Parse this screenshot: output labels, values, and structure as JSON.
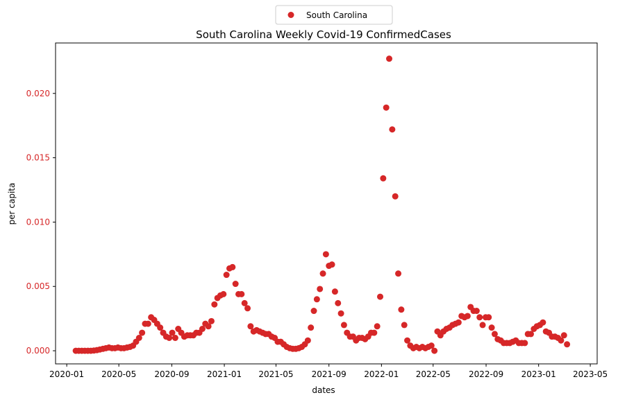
{
  "chart_data": {
    "type": "scatter",
    "title": "South Carolina Weekly Covid-19 ConfirmedCases",
    "xlabel": "dates",
    "ylabel": "per capita",
    "legend": "upper center",
    "series": [
      {
        "name": "South Carolina",
        "color": "#d62728",
        "x": [
          "2020-01-22",
          "2020-01-29",
          "2020-02-05",
          "2020-02-12",
          "2020-02-19",
          "2020-02-26",
          "2020-03-04",
          "2020-03-11",
          "2020-03-18",
          "2020-03-25",
          "2020-04-01",
          "2020-04-08",
          "2020-04-15",
          "2020-04-22",
          "2020-04-29",
          "2020-05-06",
          "2020-05-13",
          "2020-05-20",
          "2020-05-27",
          "2020-06-03",
          "2020-06-10",
          "2020-06-17",
          "2020-06-24",
          "2020-07-01",
          "2020-07-08",
          "2020-07-15",
          "2020-07-22",
          "2020-07-29",
          "2020-08-05",
          "2020-08-12",
          "2020-08-19",
          "2020-08-26",
          "2020-09-02",
          "2020-09-09",
          "2020-09-16",
          "2020-09-23",
          "2020-09-30",
          "2020-10-07",
          "2020-10-14",
          "2020-10-21",
          "2020-10-28",
          "2020-11-04",
          "2020-11-11",
          "2020-11-18",
          "2020-11-25",
          "2020-12-02",
          "2020-12-09",
          "2020-12-16",
          "2020-12-23",
          "2020-12-30",
          "2021-01-06",
          "2021-01-13",
          "2021-01-20",
          "2021-01-27",
          "2021-02-03",
          "2021-02-10",
          "2021-02-17",
          "2021-02-24",
          "2021-03-03",
          "2021-03-10",
          "2021-03-17",
          "2021-03-24",
          "2021-03-31",
          "2021-04-07",
          "2021-04-14",
          "2021-04-21",
          "2021-04-28",
          "2021-05-05",
          "2021-05-12",
          "2021-05-19",
          "2021-05-26",
          "2021-06-02",
          "2021-06-09",
          "2021-06-16",
          "2021-06-23",
          "2021-06-30",
          "2021-07-07",
          "2021-07-14",
          "2021-07-21",
          "2021-07-28",
          "2021-08-04",
          "2021-08-11",
          "2021-08-18",
          "2021-08-25",
          "2021-09-01",
          "2021-09-08",
          "2021-09-15",
          "2021-09-22",
          "2021-09-29",
          "2021-10-06",
          "2021-10-13",
          "2021-10-20",
          "2021-10-27",
          "2021-11-03",
          "2021-11-10",
          "2021-11-17",
          "2021-11-24",
          "2021-12-01",
          "2021-12-08",
          "2021-12-15",
          "2021-12-22",
          "2021-12-29",
          "2022-01-05",
          "2022-01-12",
          "2022-01-19",
          "2022-01-26",
          "2022-02-02",
          "2022-02-09",
          "2022-02-16",
          "2022-02-23",
          "2022-03-02",
          "2022-03-09",
          "2022-03-16",
          "2022-03-23",
          "2022-03-30",
          "2022-04-06",
          "2022-04-13",
          "2022-04-20",
          "2022-04-27",
          "2022-05-04",
          "2022-05-11",
          "2022-05-18",
          "2022-05-25",
          "2022-06-01",
          "2022-06-08",
          "2022-06-15",
          "2022-06-22",
          "2022-06-29",
          "2022-07-06",
          "2022-07-13",
          "2022-07-20",
          "2022-07-27",
          "2022-08-03",
          "2022-08-10",
          "2022-08-17",
          "2022-08-24",
          "2022-08-31",
          "2022-09-07",
          "2022-09-14",
          "2022-09-21",
          "2022-09-28",
          "2022-10-05",
          "2022-10-12",
          "2022-10-19",
          "2022-10-26",
          "2022-11-02",
          "2022-11-09",
          "2022-11-16",
          "2022-11-23",
          "2022-11-30",
          "2022-12-07",
          "2022-12-14",
          "2022-12-21",
          "2022-12-28",
          "2023-01-04",
          "2023-01-11",
          "2023-01-18",
          "2023-01-25",
          "2023-02-01",
          "2023-02-08",
          "2023-02-15",
          "2023-02-22",
          "2023-03-01",
          "2023-03-08"
        ],
        "values": [
          0,
          0,
          0,
          0,
          0,
          0,
          2e-05,
          5e-05,
          0.0001,
          0.00015,
          0.0002,
          0.00025,
          0.0002,
          0.0002,
          0.00025,
          0.0002,
          0.0002,
          0.00025,
          0.0003,
          0.0004,
          0.0007,
          0.001,
          0.0014,
          0.0021,
          0.0021,
          0.0026,
          0.0024,
          0.0021,
          0.0018,
          0.0014,
          0.0011,
          0.001,
          0.0014,
          0.001,
          0.0017,
          0.0014,
          0.0011,
          0.0012,
          0.0012,
          0.0012,
          0.0014,
          0.0014,
          0.0017,
          0.0021,
          0.0019,
          0.0023,
          0.0036,
          0.0041,
          0.0043,
          0.0044,
          0.0059,
          0.0064,
          0.0065,
          0.0052,
          0.0044,
          0.0044,
          0.0037,
          0.0033,
          0.0019,
          0.0015,
          0.0016,
          0.0015,
          0.0014,
          0.0013,
          0.0013,
          0.0011,
          0.001,
          0.0007,
          0.0007,
          0.0005,
          0.0003,
          0.0002,
          0.00015,
          0.00015,
          0.0002,
          0.0003,
          0.0005,
          0.0008,
          0.0018,
          0.0031,
          0.004,
          0.0048,
          0.006,
          0.0075,
          0.0066,
          0.0067,
          0.0046,
          0.0037,
          0.0029,
          0.002,
          0.0014,
          0.0011,
          0.0011,
          0.0008,
          0.001,
          0.001,
          0.0009,
          0.0011,
          0.0014,
          0.0014,
          0.0019,
          0.0042,
          0.0134,
          0.0189,
          0.0227,
          0.0172,
          0.012,
          0.006,
          0.0032,
          0.002,
          0.0008,
          0.0004,
          0.0002,
          0.0003,
          0.0002,
          0.0003,
          0.0002,
          0.0003,
          0.0004,
          0,
          0.0015,
          0.0012,
          0.0015,
          0.0017,
          0.0018,
          0.002,
          0.0021,
          0.0022,
          0.0027,
          0.0026,
          0.0027,
          0.0034,
          0.0031,
          0.0031,
          0.0026,
          0.002,
          0.0026,
          0.0026,
          0.0018,
          0.0013,
          0.0009,
          0.0008,
          0.0006,
          0.0006,
          0.0006,
          0.0007,
          0.0008,
          0.0006,
          0.0006,
          0.0006,
          0.0013,
          0.0013,
          0.0017,
          0.0019,
          0.002,
          0.0022,
          0.0015,
          0.0014,
          0.0011,
          0.0011,
          0.001,
          0.0008,
          0.0012,
          0.0005
        ]
      }
    ],
    "xlim": [
      "2019-12-06",
      "2023-05-17"
    ],
    "xticks": [
      {
        "value": "2020-01-01",
        "label": "2020-01"
      },
      {
        "value": "2020-05-01",
        "label": "2020-05"
      },
      {
        "value": "2020-09-01",
        "label": "2020-09"
      },
      {
        "value": "2021-01-01",
        "label": "2021-01"
      },
      {
        "value": "2021-05-01",
        "label": "2021-05"
      },
      {
        "value": "2021-09-01",
        "label": "2021-09"
      },
      {
        "value": "2022-01-01",
        "label": "2022-01"
      },
      {
        "value": "2022-05-01",
        "label": "2022-05"
      },
      {
        "value": "2022-09-01",
        "label": "2022-09"
      },
      {
        "value": "2023-01-01",
        "label": "2023-01"
      },
      {
        "value": "2023-05-01",
        "label": "2023-05"
      }
    ],
    "ylim": [
      -0.00102,
      0.02392
    ],
    "yticks": [
      {
        "value": 0,
        "label": "0.000"
      },
      {
        "value": 0.005,
        "label": "0.005"
      },
      {
        "value": 0.01,
        "label": "0.010"
      },
      {
        "value": 0.015,
        "label": "0.015"
      },
      {
        "value": 0.02,
        "label": "0.020"
      }
    ],
    "ytick_color": "#d62728",
    "grid": false
  }
}
